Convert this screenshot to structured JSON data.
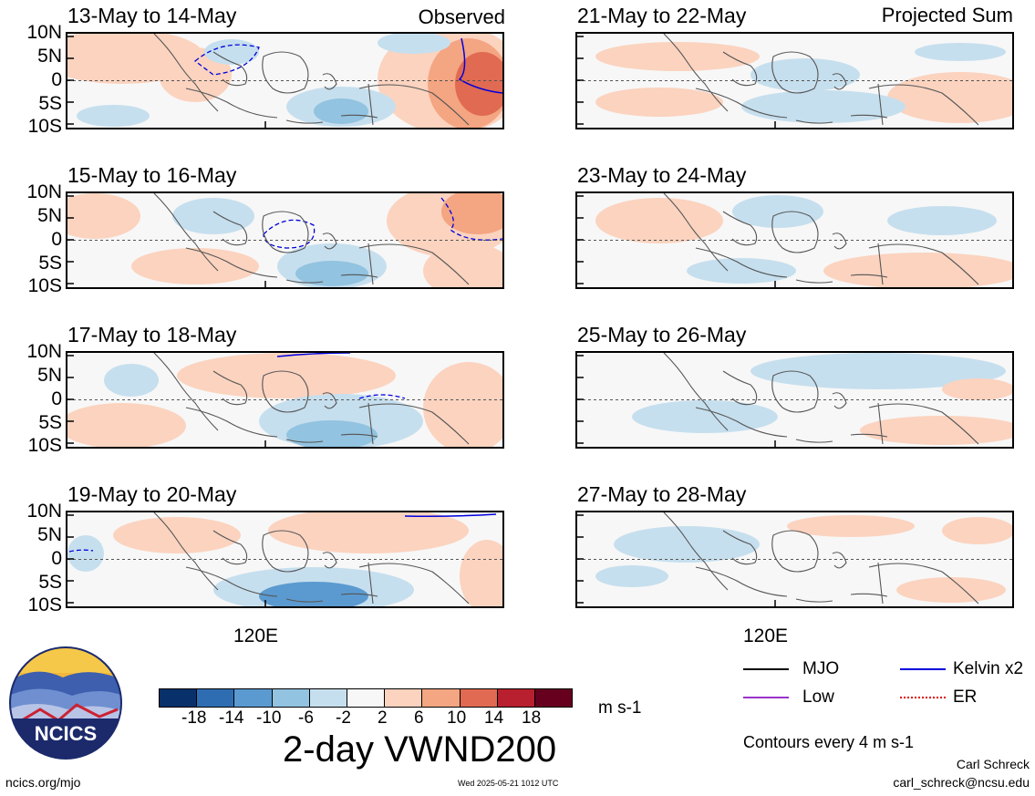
{
  "panels": [
    {
      "title": "13-May to 14-May",
      "label": "Observed"
    },
    {
      "title": "15-May to 16-May",
      "label": ""
    },
    {
      "title": "17-May to 18-May",
      "label": ""
    },
    {
      "title": "19-May to 20-May",
      "label": ""
    },
    {
      "title": "21-May to 22-May",
      "label": "Projected Sum"
    },
    {
      "title": "23-May to 24-May",
      "label": ""
    },
    {
      "title": "25-May to 26-May",
      "label": ""
    },
    {
      "title": "27-May to 28-May",
      "label": ""
    }
  ],
  "lat_labels": [
    "10N",
    "5N",
    "0",
    "5S",
    "10S"
  ],
  "lon_label": "120E",
  "colorbar": {
    "colors": [
      "#08306b",
      "#2f6db3",
      "#5b9ad0",
      "#92c3e0",
      "#c6dfee",
      "#f7f7f7",
      "#fbd3bf",
      "#f4a582",
      "#e06a52",
      "#b8202f",
      "#67001f"
    ],
    "tick_labels": [
      "-18",
      "-14",
      "-10",
      "-6",
      "-2",
      "2",
      "6",
      "10",
      "14",
      "18"
    ],
    "units": "m s-1"
  },
  "main_title": "2-day VWND200",
  "legend": [
    {
      "label": "MJO",
      "color": "#000000"
    },
    {
      "label": "Kelvin x2",
      "color": "#0000dd"
    },
    {
      "label": "Low",
      "color": "#9933cc"
    },
    {
      "label": "ER",
      "color": "#dd0000"
    }
  ],
  "contour_note": "Contours every 4 m s-1",
  "logo_text": "NCICS",
  "footer": {
    "left": "ncics.org/mjo",
    "center": "Wed 2025-05-21 1012 UTC",
    "author": "Carl Schreck",
    "email": "carl_schreck@ncsu.edu"
  }
}
